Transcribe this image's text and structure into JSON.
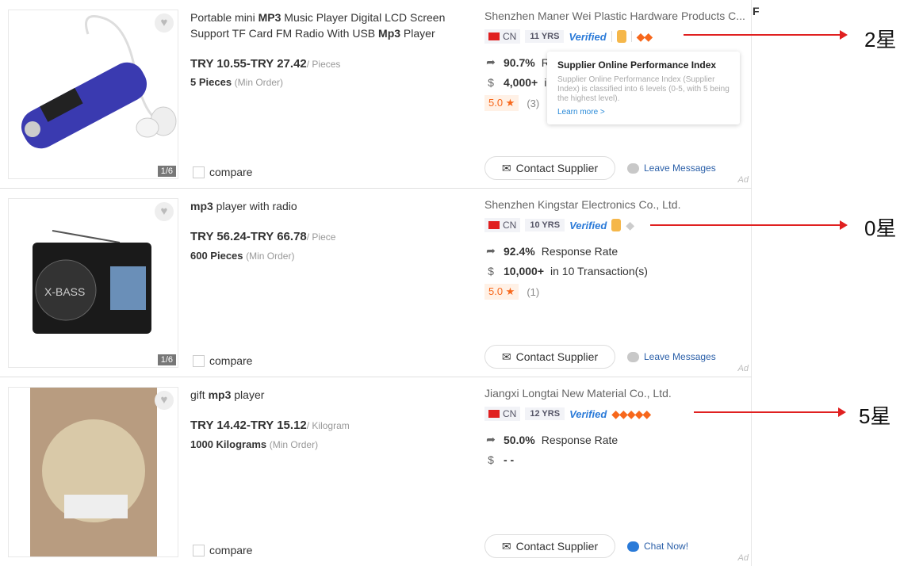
{
  "products": [
    {
      "title": [
        {
          "t": "Portable mini ",
          "b": false
        },
        {
          "t": "MP3",
          "b": true
        },
        {
          "t": " Music Player Digital LCD Screen Support TF Card FM Radio With USB ",
          "b": false
        },
        {
          "t": "Mp3",
          "b": true
        },
        {
          "t": " Player",
          "b": false
        }
      ],
      "price": "TRY 10.55-TRY 27.42",
      "unit": "/ Pieces",
      "moq": "5 Pieces",
      "moq_note": "(Min Order)",
      "image_count": "1/6",
      "compare": "compare",
      "supplier": "Shenzhen Maner Wei Plastic Hardware Products C...",
      "country": "CN",
      "years": "11 YRS",
      "verified": "Verified",
      "diamonds": 2,
      "response_rate": "90.7%",
      "response_label": "R",
      "transactions": "4,000+",
      "transactions_label": "in",
      "rating": "5.0 ★",
      "reviews": "(3)",
      "reviews_extra": "\"(",
      "contact": "Contact Supplier",
      "message": "Leave Messages",
      "ad": "Ad"
    },
    {
      "title": [
        {
          "t": "mp3",
          "b": true
        },
        {
          "t": " player with radio",
          "b": false
        }
      ],
      "price": "TRY 56.24-TRY 66.78",
      "unit": "/ Piece",
      "moq": "600 Pieces",
      "moq_note": "(Min Order)",
      "image_count": "1/6",
      "compare": "compare",
      "supplier": "Shenzhen Kingstar Electronics Co., Ltd.",
      "country": "CN",
      "years": "10 YRS",
      "verified": "Verified",
      "diamonds": 0,
      "response_rate": "92.4%",
      "response_label": "Response Rate",
      "transactions": "10,000+",
      "transactions_label": "in 10 Transaction(s)",
      "rating": "5.0 ★",
      "reviews": "(1)",
      "contact": "Contact Supplier",
      "message": "Leave Messages",
      "ad": "Ad"
    },
    {
      "title": [
        {
          "t": "gift ",
          "b": false
        },
        {
          "t": "mp3",
          "b": true
        },
        {
          "t": " player",
          "b": false
        }
      ],
      "price": "TRY 14.42-TRY 15.12",
      "unit": "/ Kilogram",
      "moq": "1000 Kilograms",
      "moq_note": "(Min Order)",
      "compare": "compare",
      "supplier": "Jiangxi Longtai New Material Co., Ltd.",
      "country": "CN",
      "years": "12 YRS",
      "verified": "Verified",
      "diamonds": 5,
      "response_rate": "50.0%",
      "response_label": "Response Rate",
      "transactions": "- -",
      "contact": "Contact Supplier",
      "message": "Chat Now!",
      "ad": "Ad"
    }
  ],
  "tooltip": {
    "title": "Supplier Online Performance Index",
    "body": "Supplier Online Performance Index (Supplier Index) is classified into 6 levels (0-5, with 5 being the highest level).",
    "link": "Learn more >"
  },
  "annotations": [
    "2星",
    "0星",
    "5星"
  ],
  "edge_letter": "F",
  "colors": {
    "accent": "#f7671b",
    "verified": "#2a7ad8",
    "arrow": "#e02020"
  }
}
